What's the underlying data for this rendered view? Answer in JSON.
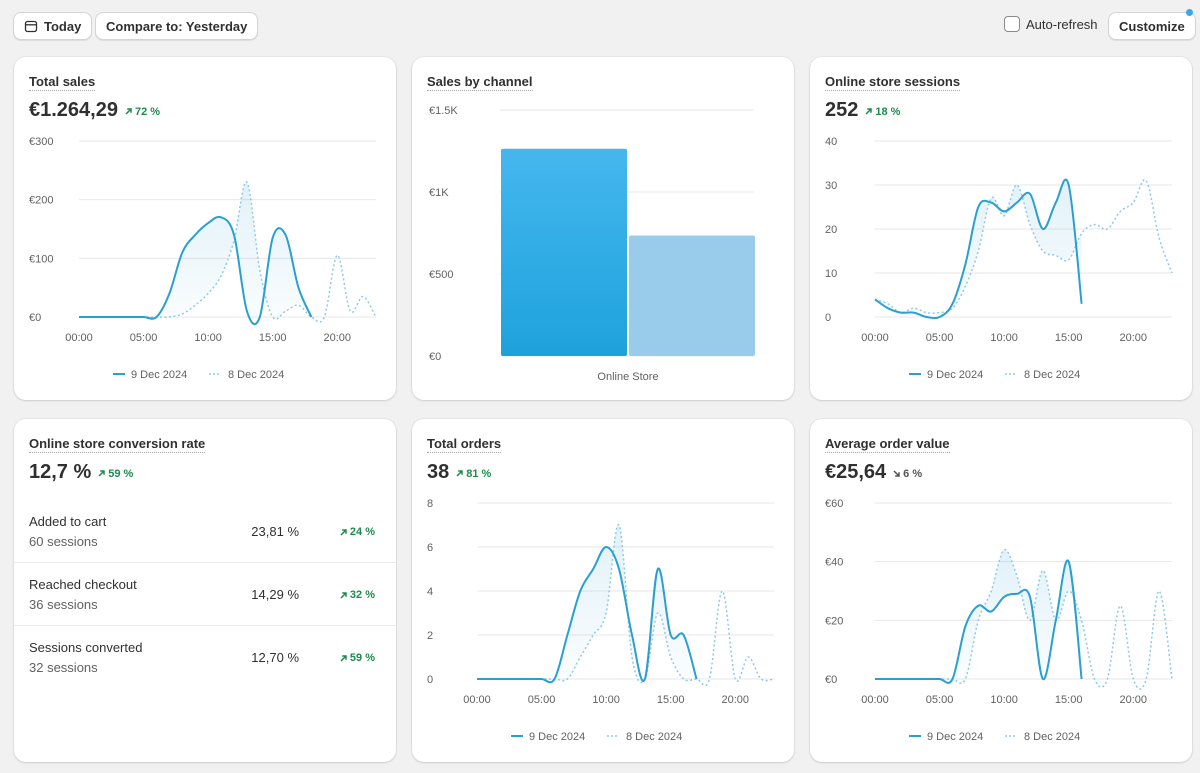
{
  "toolbar": {
    "today_label": "Today",
    "compare_label": "Compare to: Yesterday",
    "auto_refresh_label": "Auto-refresh",
    "customize_label": "Customize"
  },
  "colors": {
    "primary": "#2a9fd0",
    "comparison": "#8ccaea",
    "positive": "#1f8a4c",
    "bar_primary": "#1ea2dc",
    "bar_secondary": "#99cceb"
  },
  "legend": {
    "current": "9 Dec 2024",
    "previous": "8 Dec 2024"
  },
  "cards": {
    "total_sales": {
      "title": "Total sales",
      "value": "€1.264,29",
      "trend": "72 %",
      "trend_dir": "up"
    },
    "sales_by_channel": {
      "title": "Sales by channel"
    },
    "sessions": {
      "title": "Online store sessions",
      "value": "252",
      "trend": "18 %",
      "trend_dir": "up"
    },
    "conversion": {
      "title": "Online store conversion rate",
      "value": "12,7 %",
      "trend": "59 %",
      "trend_dir": "up",
      "rows": [
        {
          "label": "Added to cart",
          "sub": "60 sessions",
          "pct": "23,81 %",
          "trend": "24 %"
        },
        {
          "label": "Reached checkout",
          "sub": "36 sessions",
          "pct": "14,29 %",
          "trend": "32 %"
        },
        {
          "label": "Sessions converted",
          "sub": "32 sessions",
          "pct": "12,70 %",
          "trend": "59 %"
        }
      ]
    },
    "orders": {
      "title": "Total orders",
      "value": "38",
      "trend": "81 %",
      "trend_dir": "up"
    },
    "aov": {
      "title": "Average order value",
      "value": "€25,64",
      "trend": "6 %",
      "trend_dir": "down"
    }
  },
  "chart_data": [
    {
      "id": "total_sales",
      "type": "area",
      "x": [
        0,
        1,
        2,
        3,
        4,
        5,
        6,
        7,
        8,
        9,
        10,
        11,
        12,
        13,
        14,
        15,
        16,
        17,
        18,
        19,
        20,
        21,
        22,
        23
      ],
      "x_ticks": [
        "00:00",
        "05:00",
        "10:00",
        "15:00",
        "20:00"
      ],
      "y_ticks": [
        "€0",
        "€100",
        "€200",
        "€300"
      ],
      "ylim": [
        0,
        300
      ],
      "series": [
        {
          "name": "9 Dec 2024",
          "values": [
            0,
            0,
            0,
            0,
            0,
            0,
            0,
            40,
            110,
            140,
            160,
            170,
            140,
            10,
            0,
            135,
            140,
            50,
            0,
            null,
            null,
            null,
            null,
            null
          ]
        },
        {
          "name": "8 Dec 2024",
          "values": [
            0,
            0,
            0,
            0,
            0,
            0,
            0,
            0,
            5,
            20,
            40,
            70,
            130,
            230,
            80,
            0,
            10,
            20,
            0,
            0,
            105,
            10,
            35,
            0
          ]
        }
      ]
    },
    {
      "id": "sales_by_channel",
      "type": "bar",
      "categories": [
        "Online Store"
      ],
      "y_ticks": [
        "€0",
        "€500",
        "€1K",
        "€1.5K"
      ],
      "ylim": [
        0,
        1500
      ],
      "series": [
        {
          "name": "9 Dec 2024",
          "values": [
            1264
          ]
        },
        {
          "name": "8 Dec 2024",
          "values": [
            735
          ]
        }
      ]
    },
    {
      "id": "sessions",
      "type": "area",
      "x": [
        0,
        1,
        2,
        3,
        4,
        5,
        6,
        7,
        8,
        9,
        10,
        11,
        12,
        13,
        14,
        15,
        16,
        17,
        18,
        19,
        20,
        21,
        22,
        23
      ],
      "x_ticks": [
        "00:00",
        "05:00",
        "10:00",
        "15:00",
        "20:00"
      ],
      "y_ticks": [
        "0",
        "10",
        "20",
        "30",
        "40"
      ],
      "ylim": [
        0,
        40
      ],
      "series": [
        {
          "name": "9 Dec 2024",
          "values": [
            4,
            2,
            1,
            1,
            0,
            0,
            3,
            12,
            25,
            26,
            24,
            26,
            28,
            20,
            26,
            30,
            3,
            null,
            null,
            null,
            null,
            null,
            null,
            null
          ]
        },
        {
          "name": "8 Dec 2024",
          "values": [
            4,
            3,
            1,
            2,
            1,
            1,
            2,
            7,
            15,
            27,
            23,
            30,
            21,
            15,
            14,
            13,
            19,
            21,
            20,
            24,
            26,
            31,
            18,
            10
          ]
        }
      ]
    },
    {
      "id": "orders",
      "type": "area",
      "x": [
        0,
        1,
        2,
        3,
        4,
        5,
        6,
        7,
        8,
        9,
        10,
        11,
        12,
        13,
        14,
        15,
        16,
        17,
        18,
        19,
        20,
        21,
        22,
        23
      ],
      "x_ticks": [
        "00:00",
        "05:00",
        "10:00",
        "15:00",
        "20:00"
      ],
      "y_ticks": [
        "0",
        "2",
        "4",
        "6",
        "8"
      ],
      "ylim": [
        0,
        8
      ],
      "series": [
        {
          "name": "9 Dec 2024",
          "values": [
            0,
            0,
            0,
            0,
            0,
            0,
            0,
            2,
            4,
            5,
            6,
            5,
            2,
            0,
            5,
            2,
            2,
            0,
            null,
            null,
            null,
            null,
            null,
            null
          ]
        },
        {
          "name": "8 Dec 2024",
          "values": [
            0,
            0,
            0,
            0,
            0,
            0,
            0,
            0,
            1,
            2,
            3,
            7,
            1,
            0,
            3,
            1,
            0,
            0,
            0,
            4,
            0,
            1,
            0,
            0
          ]
        }
      ]
    },
    {
      "id": "aov",
      "type": "area",
      "x": [
        0,
        1,
        2,
        3,
        4,
        5,
        6,
        7,
        8,
        9,
        10,
        11,
        12,
        13,
        14,
        15,
        16,
        17,
        18,
        19,
        20,
        21,
        22,
        23
      ],
      "x_ticks": [
        "00:00",
        "05:00",
        "10:00",
        "15:00",
        "20:00"
      ],
      "y_ticks": [
        "€0",
        "€20",
        "€40",
        "€60"
      ],
      "ylim": [
        0,
        60
      ],
      "series": [
        {
          "name": "9 Dec 2024",
          "values": [
            0,
            0,
            0,
            0,
            0,
            0,
            0,
            18,
            25,
            23,
            28,
            29,
            28,
            0,
            20,
            40,
            0,
            null,
            null,
            null,
            null,
            null,
            null,
            null
          ]
        },
        {
          "name": "8 Dec 2024",
          "values": [
            0,
            0,
            0,
            0,
            0,
            0,
            0,
            0,
            20,
            30,
            44,
            35,
            20,
            37,
            20,
            30,
            20,
            0,
            0,
            25,
            0,
            0,
            30,
            0
          ]
        }
      ]
    }
  ]
}
